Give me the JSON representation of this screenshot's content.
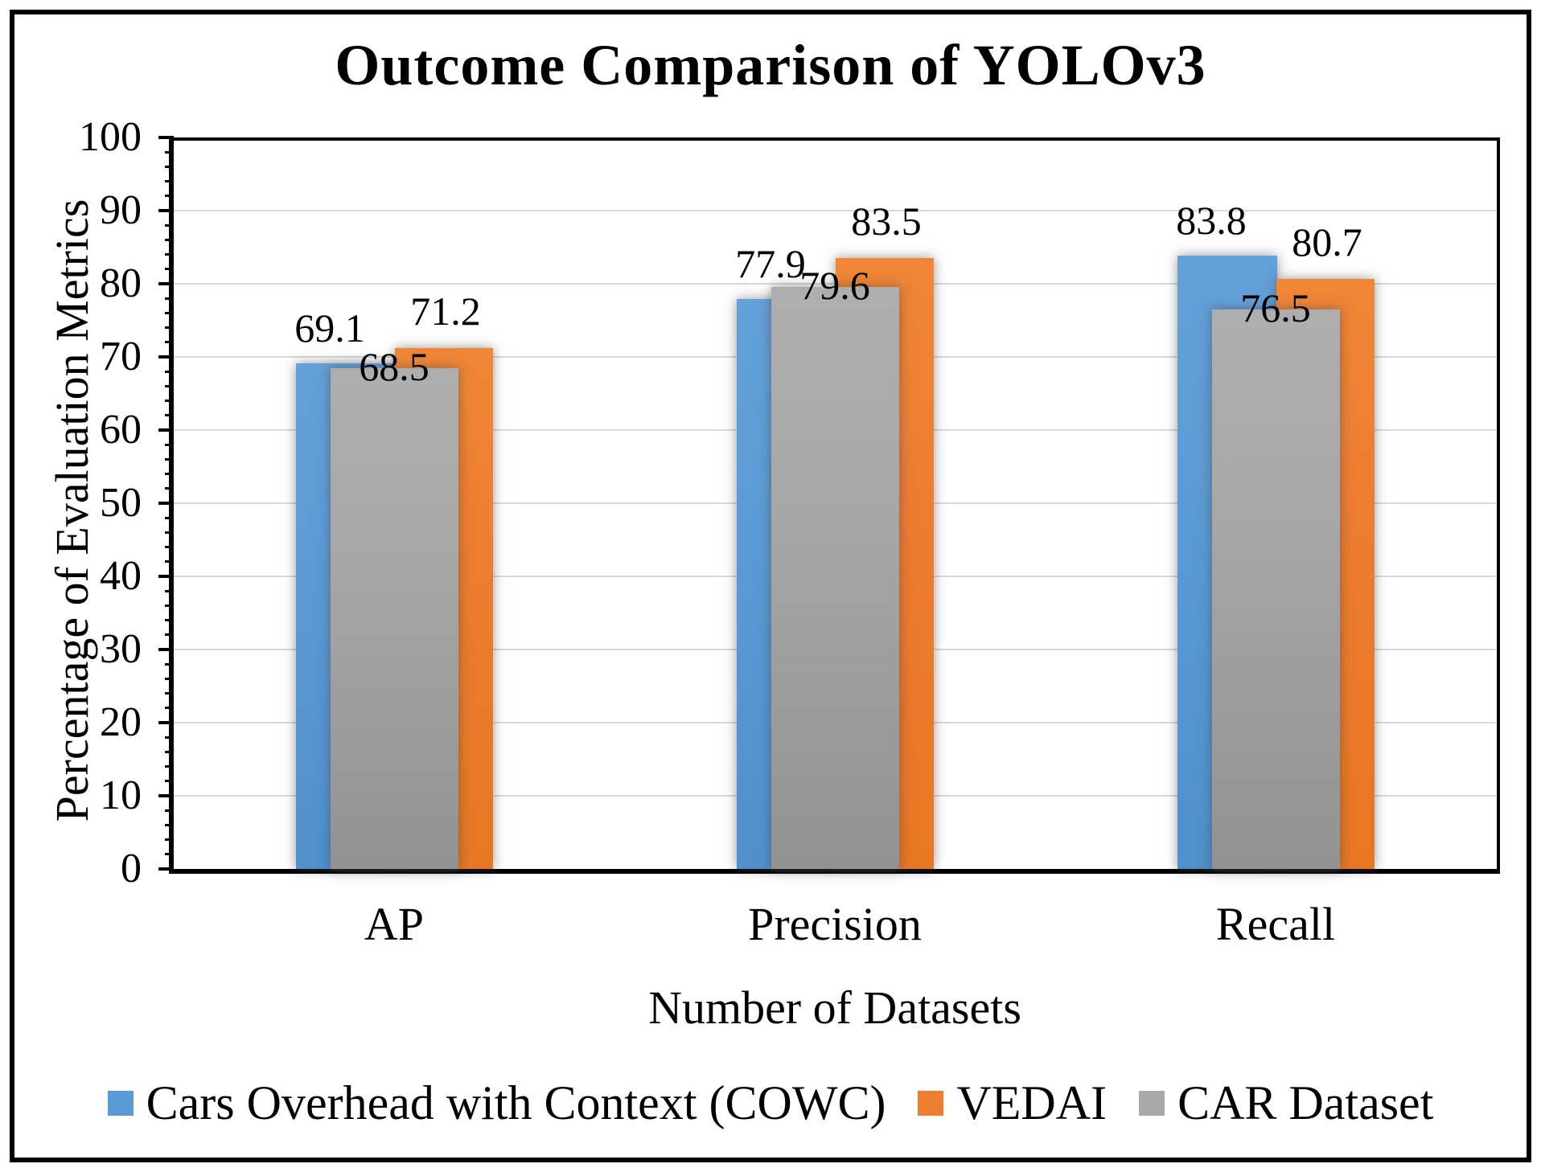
{
  "title": "Outcome Comparison of YOLOv3",
  "y_axis": {
    "title": "Percentage of Evaluation Metrics",
    "tick_labels": [
      "0",
      "10",
      "20",
      "30",
      "40",
      "50",
      "60",
      "70",
      "80",
      "90",
      "100"
    ]
  },
  "x_axis": {
    "title": "Number of Datasets",
    "category_labels": [
      "AP",
      "Precision",
      "Recall"
    ]
  },
  "legend": {
    "items": [
      {
        "label": "Cars Overhead with Context (COWC)",
        "color": "#5b9bd5"
      },
      {
        "label": "VEDAI",
        "color": "#ed7d31"
      },
      {
        "label": "CAR Dataset",
        "color": "#a8a8a8"
      }
    ]
  },
  "colors": {
    "cowc_blue": "#5b9bd5",
    "vedai_orange": "#ed7d31",
    "car_gray": "#a8a8a8",
    "gridline": "#d9d9d9",
    "axis": "#000000"
  },
  "chart_data": {
    "type": "bar",
    "title": "Outcome Comparison of YOLOv3",
    "categories": [
      "AP",
      "Precision",
      "Recall"
    ],
    "series": [
      {
        "name": "Cars Overhead with Context (COWC)",
        "color": "#5b9bd5",
        "values": [
          69.1,
          77.9,
          83.8
        ]
      },
      {
        "name": "VEDAI",
        "color": "#ed7d31",
        "values": [
          71.2,
          83.5,
          80.7
        ]
      },
      {
        "name": "CAR Dataset",
        "color": "#a8a8a8",
        "values": [
          68.5,
          79.6,
          76.5
        ]
      }
    ],
    "data_labels": [
      [
        "69.1",
        "77.9",
        "83.8"
      ],
      [
        "71.2",
        "83.5",
        "80.7"
      ],
      [
        "68.5",
        "79.6",
        "76.5"
      ]
    ],
    "xlabel": "Number of Datasets",
    "ylabel": "Percentage of Evaluation Metrics",
    "ylim": [
      0,
      100
    ],
    "y_major_step": 10,
    "y_minor_step": 2,
    "grid": true,
    "legend_position": "bottom",
    "bars_overlap": true
  }
}
